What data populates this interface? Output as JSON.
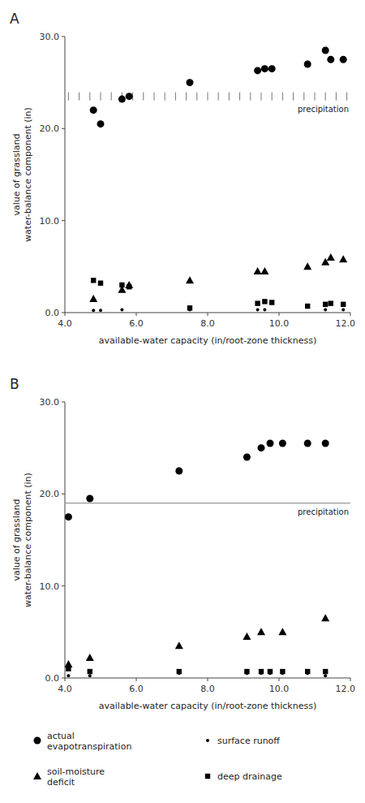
{
  "chart_data": [
    {
      "type": "scatter",
      "title": "A",
      "xlabel": "available-water capacity (in/root-zone thickness)",
      "ylabel": "value of grassland\nwater-balance component (in)",
      "xlim": [
        4.0,
        12.0
      ],
      "ylim": [
        0.0,
        30.0
      ],
      "xticks": [
        {
          "value": 4.0,
          "label": "4.0"
        },
        {
          "value": 6.0,
          "label": "6.0"
        },
        {
          "value": 8.0,
          "label": "8.0"
        },
        {
          "value": 10.0,
          "label": "10.0"
        },
        {
          "value": 12.0,
          "label": "12.0"
        }
      ],
      "yticks": [
        {
          "value": 0.0,
          "label": "0.0"
        },
        {
          "value": 10.0,
          "label": "10.0"
        },
        {
          "value": 20.0,
          "label": "20.0"
        },
        {
          "value": 30.0,
          "label": "30.0"
        }
      ],
      "grid": false,
      "precipitation": {
        "label": "precipitation",
        "y": 23.5,
        "color": "#777777",
        "x": [
          4.1,
          4.4,
          4.7,
          5.0,
          5.3,
          5.6,
          5.9,
          6.2,
          6.5,
          6.8,
          7.1,
          7.4,
          7.7,
          8.0,
          8.3,
          8.6,
          8.9,
          9.2,
          9.5,
          9.8,
          10.1,
          10.4,
          10.7,
          11.0,
          11.3,
          11.6,
          11.9
        ]
      },
      "series": [
        {
          "color": "#000000",
          "marker": "circle",
          "x": [
            4.8,
            5.0,
            5.6,
            5.8,
            7.5,
            9.4,
            9.6,
            9.8,
            10.8,
            11.3,
            11.45,
            11.8
          ],
          "values": [
            22.0,
            20.5,
            23.2,
            23.5,
            25.0,
            26.3,
            26.5,
            26.5,
            27.0,
            28.5,
            27.5,
            27.5
          ]
        },
        {
          "color": "#000000",
          "marker": "dot",
          "x": [
            4.8,
            5.0,
            5.6,
            7.5,
            9.4,
            9.6,
            11.3,
            11.8
          ],
          "values": [
            0.25,
            0.25,
            0.3,
            0.3,
            0.3,
            0.3,
            0.3,
            0.3
          ]
        },
        {
          "color": "#000000",
          "marker": "triangle",
          "x": [
            4.8,
            5.6,
            5.8,
            7.5,
            9.4,
            9.6,
            10.8,
            11.3,
            11.45,
            11.8
          ],
          "values": [
            1.5,
            2.5,
            3.0,
            3.5,
            4.5,
            4.5,
            5.0,
            5.5,
            6.0,
            5.8
          ]
        },
        {
          "color": "#000000",
          "marker": "square",
          "x": [
            4.8,
            5.0,
            5.6,
            5.8,
            7.5,
            9.4,
            9.6,
            9.8,
            10.8,
            11.3,
            11.45,
            11.8
          ],
          "values": [
            3.5,
            3.2,
            3.0,
            2.8,
            0.5,
            1.0,
            1.2,
            1.1,
            0.7,
            0.9,
            1.0,
            0.9
          ]
        }
      ]
    },
    {
      "type": "scatter",
      "title": "B",
      "xlabel": "available-water capacity (in/root-zone thickness)",
      "ylabel": "value of grassland\nwater-balance component (in)",
      "xlim": [
        4.0,
        12.0
      ],
      "ylim": [
        0.0,
        30.0
      ],
      "xticks": [
        {
          "value": 4.0,
          "label": "4.0"
        },
        {
          "value": 6.0,
          "label": "6.0"
        },
        {
          "value": 8.0,
          "label": "8.0"
        },
        {
          "value": 10.0,
          "label": "10.0"
        },
        {
          "value": 12.0,
          "label": "12.0"
        }
      ],
      "yticks": [
        {
          "value": 0.0,
          "label": "0.0"
        },
        {
          "value": 10.0,
          "label": "10.0"
        },
        {
          "value": 20.0,
          "label": "20.0"
        },
        {
          "value": 30.0,
          "label": "30.0"
        }
      ],
      "grid": false,
      "legend": "bottom",
      "precipitation": {
        "label": "precipitation",
        "y": 19.0,
        "color": "#999999"
      },
      "series": [
        {
          "name": "actual\nevapotranspiration",
          "color": "#000000",
          "marker": "circle",
          "x": [
            4.1,
            4.7,
            7.2,
            9.1,
            9.5,
            9.75,
            10.1,
            10.8,
            11.3
          ],
          "values": [
            17.5,
            19.5,
            22.5,
            24.0,
            25.0,
            25.5,
            25.5,
            25.5,
            25.5
          ]
        },
        {
          "name": "surface runoff",
          "color": "#000000",
          "marker": "dot",
          "x": [
            4.1,
            4.7,
            7.2,
            9.1,
            9.5,
            9.75,
            10.1,
            10.8,
            11.3
          ],
          "values": [
            0.25,
            0.25,
            0.5,
            0.5,
            0.5,
            0.5,
            0.5,
            0.5,
            0.25
          ]
        },
        {
          "name": "soil-moisture\ndeficit",
          "color": "#000000",
          "marker": "triangle",
          "x": [
            4.1,
            4.7,
            7.2,
            9.1,
            9.5,
            10.1,
            11.3
          ],
          "values": [
            1.5,
            2.2,
            3.5,
            4.5,
            5.0,
            5.0,
            6.5
          ]
        },
        {
          "name": "deep drainage",
          "color": "#000000",
          "marker": "square",
          "x": [
            4.1,
            4.7,
            7.2,
            9.1,
            9.5,
            9.75,
            10.1,
            10.8,
            11.3
          ],
          "values": [
            1.0,
            0.7,
            0.7,
            0.7,
            0.7,
            0.7,
            0.7,
            0.7,
            0.7
          ]
        }
      ]
    }
  ]
}
